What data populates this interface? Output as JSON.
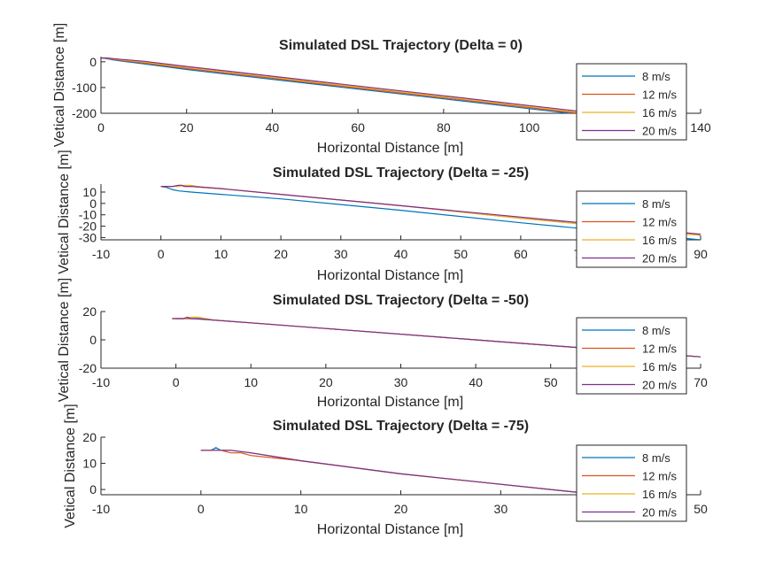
{
  "chart_data": [
    {
      "type": "line",
      "title": "Simulated DSL Trajectory (Delta = 0)",
      "xlabel": "Horizontal Distance [m]",
      "ylabel": "Vetical Distance [m]",
      "xlim": [
        0,
        140
      ],
      "ylim": [
        -200,
        20
      ],
      "xticks": [
        "0",
        "20",
        "40",
        "60",
        "80",
        "100",
        "120",
        "140"
      ],
      "yticks": [
        "0",
        "-100",
        "-200"
      ],
      "legend_position": "right",
      "series": [
        {
          "name": "8 m/s",
          "color": "#0072BD",
          "x": [
            0,
            1,
            2,
            3,
            5,
            10,
            20,
            40,
            60,
            80,
            100,
            120,
            140
          ],
          "y": [
            15,
            13,
            10,
            7,
            2,
            -8,
            -30,
            -68,
            -106,
            -144,
            -182,
            -220,
            -258
          ]
        },
        {
          "name": "12 m/s",
          "color": "#D95319",
          "x": [
            0,
            1,
            2,
            3,
            5,
            10,
            20,
            40,
            60,
            80,
            100,
            120,
            140
          ],
          "y": [
            15,
            14,
            12,
            9,
            5,
            -4,
            -26,
            -64,
            -102,
            -140,
            -178,
            -216,
            -254
          ]
        },
        {
          "name": "16 m/s",
          "color": "#EDB120",
          "x": [
            0,
            1,
            2,
            3,
            5,
            10,
            20,
            40,
            60,
            80,
            100,
            120,
            140
          ],
          "y": [
            15,
            15,
            13,
            11,
            7,
            -1,
            -22,
            -60,
            -98,
            -136,
            -174,
            -212,
            -250
          ]
        },
        {
          "name": "20 m/s",
          "color": "#7E2F8E",
          "x": [
            0,
            1,
            2,
            3,
            5,
            10,
            20,
            40,
            60,
            80,
            100,
            120,
            140
          ],
          "y": [
            15,
            15,
            14,
            12,
            9,
            2,
            -18,
            -56,
            -94,
            -132,
            -170,
            -208,
            -246
          ]
        }
      ]
    },
    {
      "type": "line",
      "title": "Simulated DSL Trajectory (Delta = -25)",
      "xlabel": "Horizontal Distance [m]",
      "ylabel": "Vetical Distance [m]",
      "xlim": [
        -10,
        90
      ],
      "ylim": [
        -32,
        17
      ],
      "xticks": [
        "-10",
        "0",
        "10",
        "20",
        "30",
        "40",
        "50",
        "60",
        "70",
        "80",
        "90"
      ],
      "yticks": [
        "10",
        "0",
        "-10",
        "-20",
        "-30"
      ],
      "legend_position": "right",
      "series": [
        {
          "name": "8 m/s",
          "color": "#0072BD",
          "x": [
            0,
            1,
            2,
            3,
            5,
            10,
            20,
            40,
            60,
            80,
            90
          ],
          "y": [
            15,
            14,
            12,
            11,
            10,
            8,
            4,
            -6,
            -17,
            -27,
            -32
          ]
        },
        {
          "name": "12 m/s",
          "color": "#D95319",
          "x": [
            0,
            1,
            2,
            3,
            4,
            5,
            10,
            20,
            40,
            60,
            80,
            90
          ],
          "y": [
            15,
            15,
            15,
            16,
            15,
            15,
            13,
            8,
            -2,
            -13,
            -23,
            -28
          ]
        },
        {
          "name": "16 m/s",
          "color": "#EDB120",
          "x": [
            0,
            1,
            2,
            3,
            4,
            5,
            6,
            10,
            20,
            40,
            60,
            80,
            90
          ],
          "y": [
            15,
            15,
            15,
            15,
            16,
            16,
            15,
            13,
            8,
            -2,
            -13,
            -23,
            -28
          ]
        },
        {
          "name": "20 m/s",
          "color": "#7E2F8E",
          "x": [
            0,
            1,
            2,
            3,
            3.5,
            4,
            5,
            10,
            20,
            40,
            60,
            80,
            90
          ],
          "y": [
            15,
            15,
            15,
            16,
            16,
            15,
            15,
            13,
            8,
            -2,
            -12,
            -22,
            -27
          ]
        }
      ]
    },
    {
      "type": "line",
      "title": "Simulated DSL Trajectory (Delta = -50)",
      "xlabel": "Horizontal Distance [m]",
      "ylabel": "Vetical Distance [m]",
      "xlim": [
        -10,
        70
      ],
      "ylim": [
        -20,
        20
      ],
      "xticks": [
        "-10",
        "0",
        "10",
        "20",
        "30",
        "40",
        "50",
        "60",
        "70"
      ],
      "yticks": [
        "20",
        "0",
        "-20"
      ],
      "legend_position": "right",
      "series": [
        {
          "name": "8 m/s",
          "color": "#0072BD",
          "x": [
            0,
            1,
            2,
            5,
            10,
            20,
            40,
            60,
            70
          ],
          "y": [
            15,
            15,
            15,
            14,
            12,
            8,
            0,
            -8,
            -12
          ]
        },
        {
          "name": "12 m/s",
          "color": "#D95319",
          "x": [
            -0.5,
            1,
            2,
            3,
            5,
            10,
            20,
            40,
            60,
            70
          ],
          "y": [
            15,
            15,
            15,
            15,
            14,
            12,
            8,
            0,
            -8,
            -12
          ]
        },
        {
          "name": "16 m/s",
          "color": "#EDB120",
          "x": [
            -0.5,
            1,
            2,
            3,
            4,
            5,
            10,
            20,
            40,
            60,
            70
          ],
          "y": [
            15,
            15,
            16,
            16,
            15,
            14,
            12,
            8,
            0,
            -8,
            -12
          ]
        },
        {
          "name": "20 m/s",
          "color": "#7E2F8E",
          "x": [
            -0.5,
            0.5,
            1,
            1.5,
            2,
            3,
            5,
            10,
            20,
            40,
            60,
            70
          ],
          "y": [
            15,
            15,
            15,
            16,
            15,
            15,
            14,
            12,
            8,
            0,
            -8,
            -12
          ]
        }
      ]
    },
    {
      "type": "line",
      "title": "Simulated DSL Trajectory (Delta = -75)",
      "xlabel": "Horizontal Distance [m]",
      "ylabel": "Vetical Distance [m]",
      "xlim": [
        -10,
        50
      ],
      "ylim": [
        -2,
        20
      ],
      "xticks": [
        "-10",
        "0",
        "10",
        "20",
        "30",
        "40",
        "50"
      ],
      "yticks": [
        "20",
        "10",
        "0"
      ],
      "legend_position": "right",
      "series": [
        {
          "name": "8 m/s",
          "color": "#0072BD",
          "x": [
            0,
            0.5,
            1,
            1.5,
            2,
            3,
            5,
            10,
            20,
            30,
            40,
            50
          ],
          "y": [
            15,
            15,
            15,
            16,
            15,
            15,
            14,
            11,
            6,
            2,
            -2,
            -7
          ]
        },
        {
          "name": "12 m/s",
          "color": "#D95319",
          "x": [
            0,
            1,
            2,
            3,
            4,
            5,
            10,
            20,
            30,
            40,
            50
          ],
          "y": [
            15,
            15,
            15,
            14,
            14,
            13,
            11,
            6,
            2,
            -2,
            -7
          ]
        },
        {
          "name": "16 m/s",
          "color": "#EDB120",
          "x": [
            0,
            1,
            2,
            3,
            5,
            10,
            20,
            30,
            40,
            50
          ],
          "y": [
            15,
            15,
            15,
            15,
            14,
            11,
            6,
            2,
            -2,
            -7
          ]
        },
        {
          "name": "20 m/s",
          "color": "#7E2F8E",
          "x": [
            0,
            1,
            2,
            3,
            5,
            10,
            20,
            30,
            40,
            50
          ],
          "y": [
            15,
            15,
            15,
            15,
            14,
            11,
            6,
            2,
            -2,
            -7
          ]
        }
      ]
    }
  ]
}
